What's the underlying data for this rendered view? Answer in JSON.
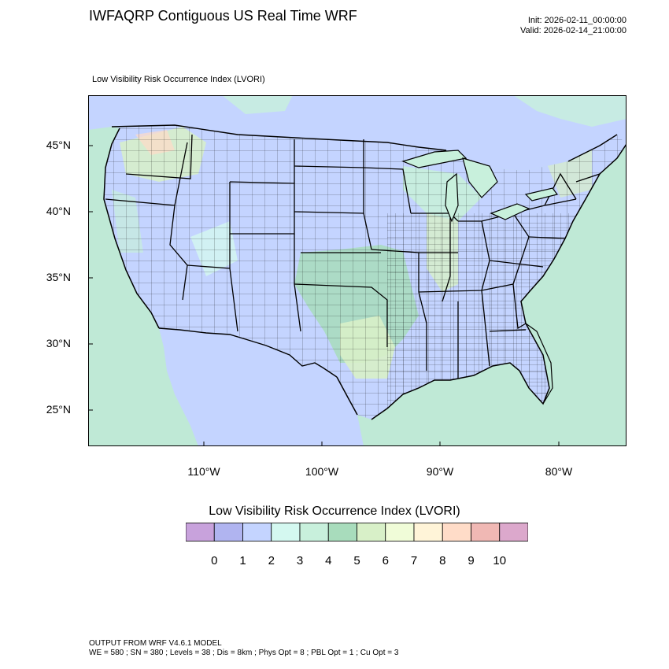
{
  "header": {
    "title": "IWFAQRP Contiguous US Real Time WRF",
    "init": "Init: 2026-02-11_00:00:00",
    "valid": "Valid: 2026-02-14_21:00:00"
  },
  "map": {
    "field_label": "Low Visibility Risk Occurrence Index   (LVORI)",
    "lat_labels": [
      "45°N",
      "40°N",
      "35°N",
      "30°N",
      "25°N"
    ],
    "lon_labels": [
      "110°W",
      "100°W",
      "90°W",
      "80°W"
    ],
    "colors": {
      "land_base": "#c4d4ff",
      "ocean": "#bfe9d6",
      "boundary": "#000000"
    }
  },
  "legend": {
    "title": "Low Visibility Risk Occurrence Index  (LVORI)",
    "tick_labels": [
      "0",
      "1",
      "2",
      "3",
      "4",
      "5",
      "6",
      "7",
      "8",
      "9",
      "10"
    ],
    "colors": [
      "#c8a2dc",
      "#b0b4f0",
      "#c4d4ff",
      "#d4f8f0",
      "#c8f0dc",
      "#a8dcbc",
      "#d8f0c8",
      "#f0fcd8",
      "#fff4d8",
      "#ffdcc8",
      "#f0b8b4",
      "#dca8cc"
    ]
  },
  "footer": {
    "line1": "OUTPUT FROM WRF V4.6.1 MODEL",
    "line2": "WE = 580 ; SN = 380 ; Levels = 38 ; Dis = 8km ; Phys Opt = 8 ; PBL Opt = 1 ; Cu Opt = 3"
  }
}
